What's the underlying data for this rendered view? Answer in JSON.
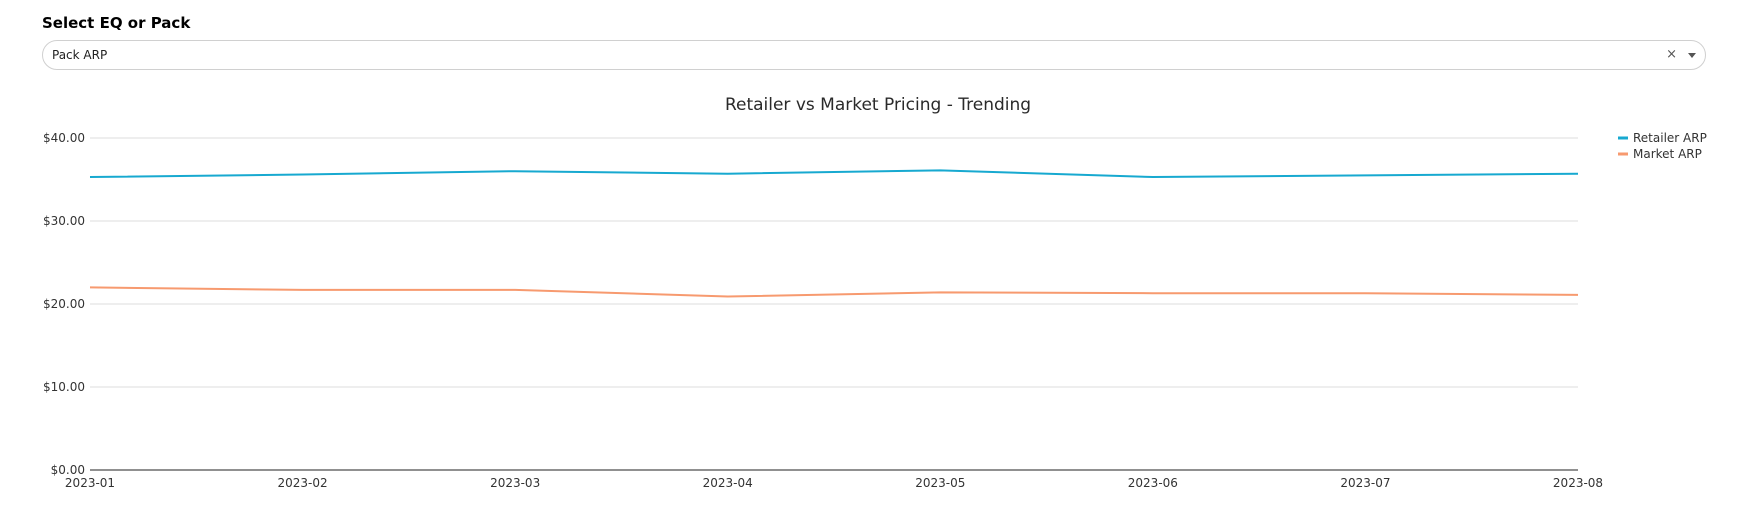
{
  "select": {
    "label": "Select EQ or Pack",
    "value": "Pack ARP",
    "clear_symbol": "×",
    "caret": "chevron-down-icon"
  },
  "chart_data": {
    "type": "line",
    "title": "Retailer vs Market Pricing - Trending",
    "x": [
      "2023-01",
      "2023-02",
      "2023-03",
      "2023-04",
      "2023-05",
      "2023-06",
      "2023-07",
      "2023-08"
    ],
    "yticks": [
      "$0.00",
      "$10.00",
      "$20.00",
      "$30.00",
      "$40.00"
    ],
    "ylim": [
      0,
      40
    ],
    "grid": true,
    "legend_placement": "top-right",
    "series": [
      {
        "name": "Retailer ARP",
        "color": "#17a9d0",
        "values": [
          35.3,
          35.6,
          36.0,
          35.7,
          36.1,
          35.3,
          35.5,
          35.7
        ]
      },
      {
        "name": "Market ARP",
        "color": "#f79a6f",
        "values": [
          22.0,
          21.7,
          21.7,
          20.9,
          21.4,
          21.3,
          21.3,
          21.1
        ]
      }
    ]
  }
}
